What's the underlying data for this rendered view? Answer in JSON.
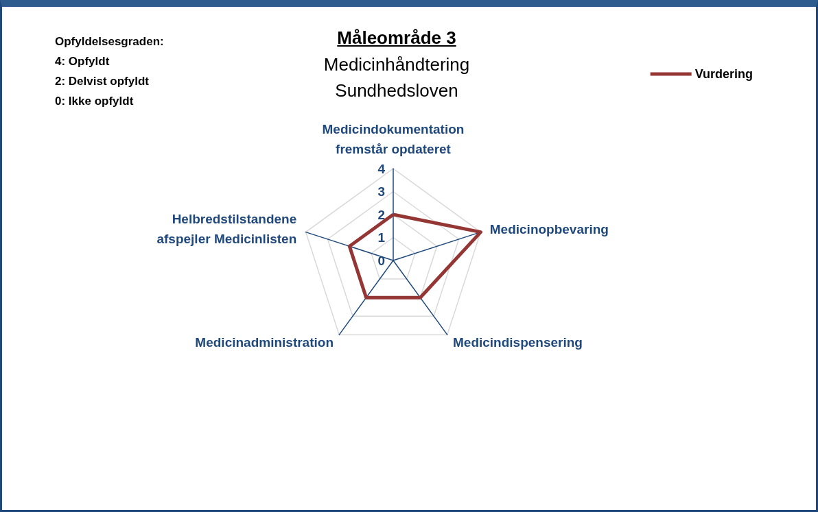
{
  "chart_data": {
    "type": "radar",
    "title": "Måleområde 3",
    "subtitle": "Medicinhåndtering\nSundhedsloven",
    "annotations": [
      "Opfyldelsesgraden:",
      "4: Opfyldt",
      "2: Delvist opfyldt",
      "0: Ikke opfyldt"
    ],
    "categories": [
      "Medicindokumentation fremstår opdateret",
      "Medicinopbevaring",
      "Medicindispensering",
      "Medicinadministration",
      "Helbredstilstandene afspejler Medicinlisten"
    ],
    "series": [
      {
        "name": "Vurdering",
        "color": "#943634",
        "values": [
          2,
          4,
          2,
          2,
          2
        ]
      }
    ],
    "ylim": [
      0,
      4
    ],
    "yticks": [
      0,
      1,
      2,
      3,
      4
    ],
    "grid": true,
    "legend": "top right",
    "marker": "none",
    "line_style": "solid"
  }
}
